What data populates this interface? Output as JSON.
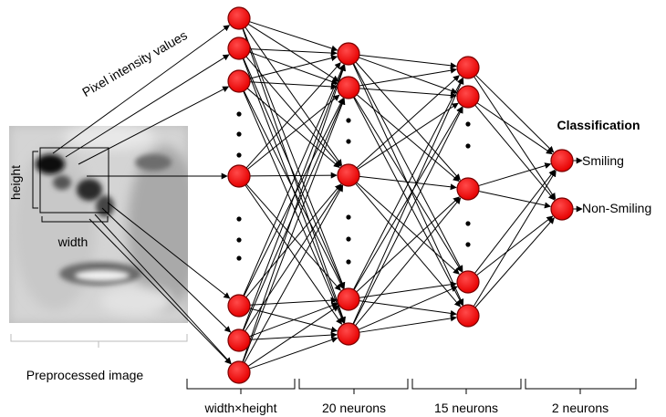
{
  "face_image": {
    "pixel_label": "Pixel intensity values",
    "height_label": "height",
    "width_label": "width",
    "caption": "Preprocessed  image"
  },
  "layers": [
    {
      "label": "width×height"
    },
    {
      "label": "20 neurons"
    },
    {
      "label": "15 neurons"
    },
    {
      "label": "2 neurons"
    }
  ],
  "output": {
    "title": "Classification",
    "classes": [
      "Smiling",
      "Non-Smiling"
    ]
  },
  "colors": {
    "neuron_fill": "#ff0000",
    "neuron_stroke": "#7a0000",
    "connection": "#000000"
  }
}
